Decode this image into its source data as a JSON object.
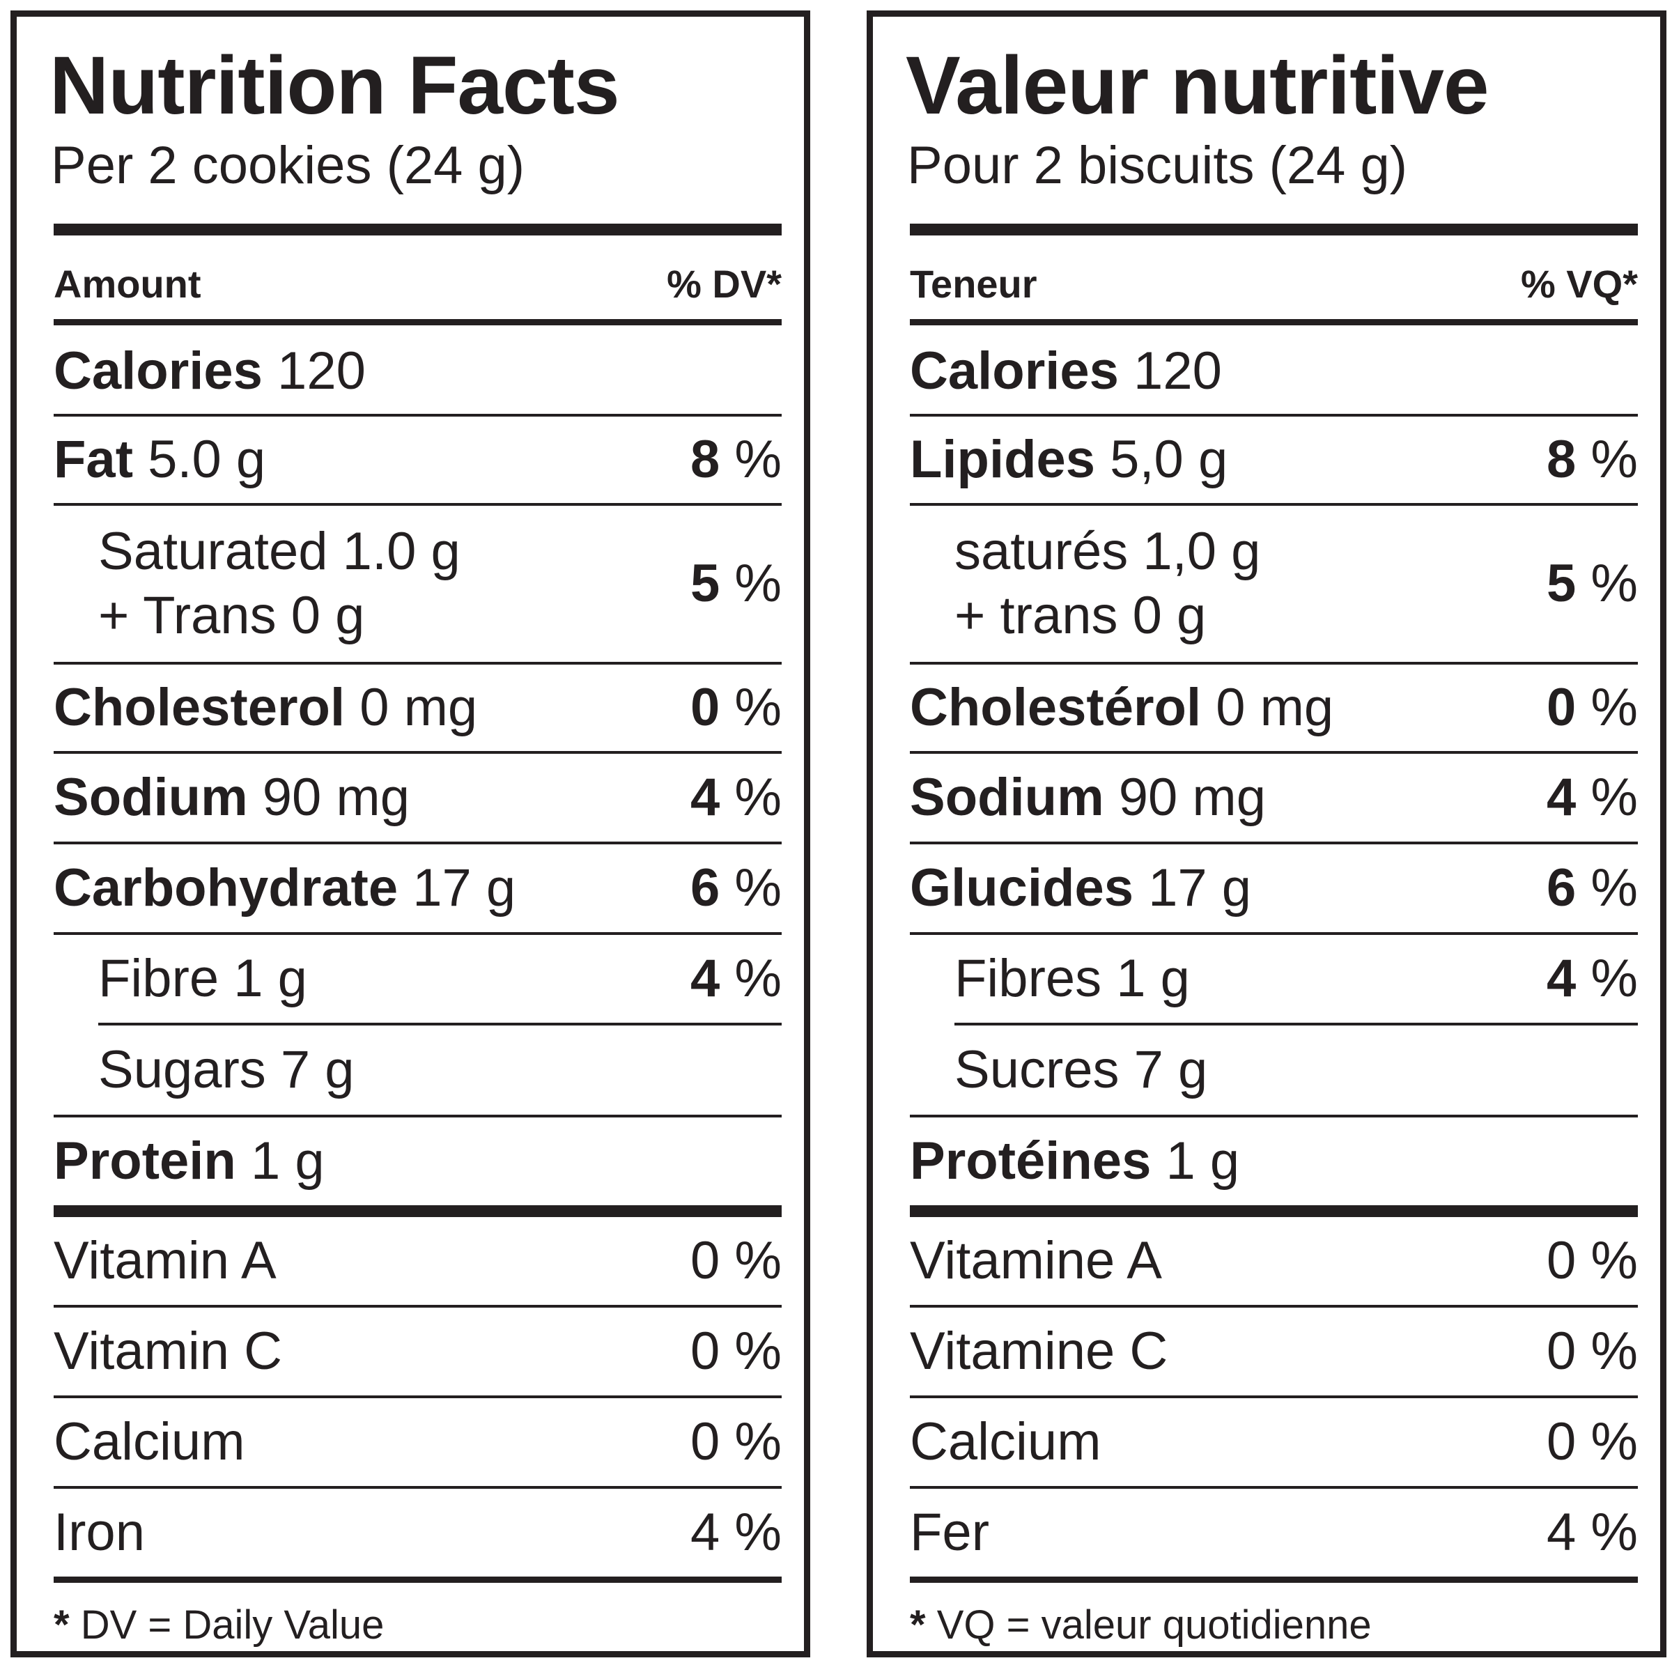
{
  "english": {
    "title": "Nutrition Facts",
    "serving": "Per 2 cookies (24 g)",
    "header_amount": "Amount",
    "header_dv": "% DV*",
    "calories_label": "Calories",
    "calories_value": "120",
    "fat": {
      "name": "Fat",
      "amount": "5.0 g",
      "dv": "8",
      "unit": "%"
    },
    "saturated": {
      "line1": "Saturated 1.0 g",
      "line2": "+ Trans 0 g",
      "dv": "5",
      "unit": "%"
    },
    "cholesterol": {
      "name": "Cholesterol",
      "amount": "0 mg",
      "dv": "0",
      "unit": "%"
    },
    "sodium": {
      "name": "Sodium",
      "amount": "90 mg",
      "dv": "4",
      "unit": "%"
    },
    "carbohydrate": {
      "name": "Carbohydrate",
      "amount": "17 g",
      "dv": "6",
      "unit": "%"
    },
    "fibre": {
      "name": "Fibre 1 g",
      "dv": "4",
      "unit": "%"
    },
    "sugars": {
      "name": "Sugars 7 g"
    },
    "protein": {
      "name": "Protein",
      "amount": "1 g"
    },
    "vitamin_a": {
      "name": "Vitamin A",
      "dv": "0 %"
    },
    "vitamin_c": {
      "name": "Vitamin C",
      "dv": "0 %"
    },
    "calcium": {
      "name": "Calcium",
      "dv": "0 %"
    },
    "iron": {
      "name": "Iron",
      "dv": "4 %"
    },
    "footnote_star": "*",
    "footnote": "DV = Daily Value"
  },
  "french": {
    "title": "Valeur nutritive",
    "serving": "Pour 2 biscuits (24 g)",
    "header_amount": "Teneur",
    "header_dv": "% VQ*",
    "calories_label": "Calories",
    "calories_value": "120",
    "fat": {
      "name": "Lipides",
      "amount": "5,0 g",
      "dv": "8",
      "unit": "%"
    },
    "saturated": {
      "line1": "saturés 1,0 g",
      "line2": "+ trans 0 g",
      "dv": "5",
      "unit": "%"
    },
    "cholesterol": {
      "name": "Cholestérol",
      "amount": "0 mg",
      "dv": "0",
      "unit": "%"
    },
    "sodium": {
      "name": "Sodium",
      "amount": "90 mg",
      "dv": "4",
      "unit": "%"
    },
    "carbohydrate": {
      "name": "Glucides",
      "amount": "17 g",
      "dv": "6",
      "unit": "%"
    },
    "fibre": {
      "name": "Fibres 1 g",
      "dv": "4",
      "unit": "%"
    },
    "sugars": {
      "name": "Sucres 7 g"
    },
    "protein": {
      "name": "Protéines",
      "amount": "1 g"
    },
    "vitamin_a": {
      "name": "Vitamine A",
      "dv": "0 %"
    },
    "vitamin_c": {
      "name": "Vitamine C",
      "dv": "0 %"
    },
    "calcium": {
      "name": "Calcium",
      "dv": "0 %"
    },
    "iron": {
      "name": "Fer",
      "dv": "4 %"
    },
    "footnote_star": "*",
    "footnote": "VQ = valeur quotidienne"
  },
  "colors": {
    "ink": "#231f20",
    "background": "#ffffff"
  }
}
